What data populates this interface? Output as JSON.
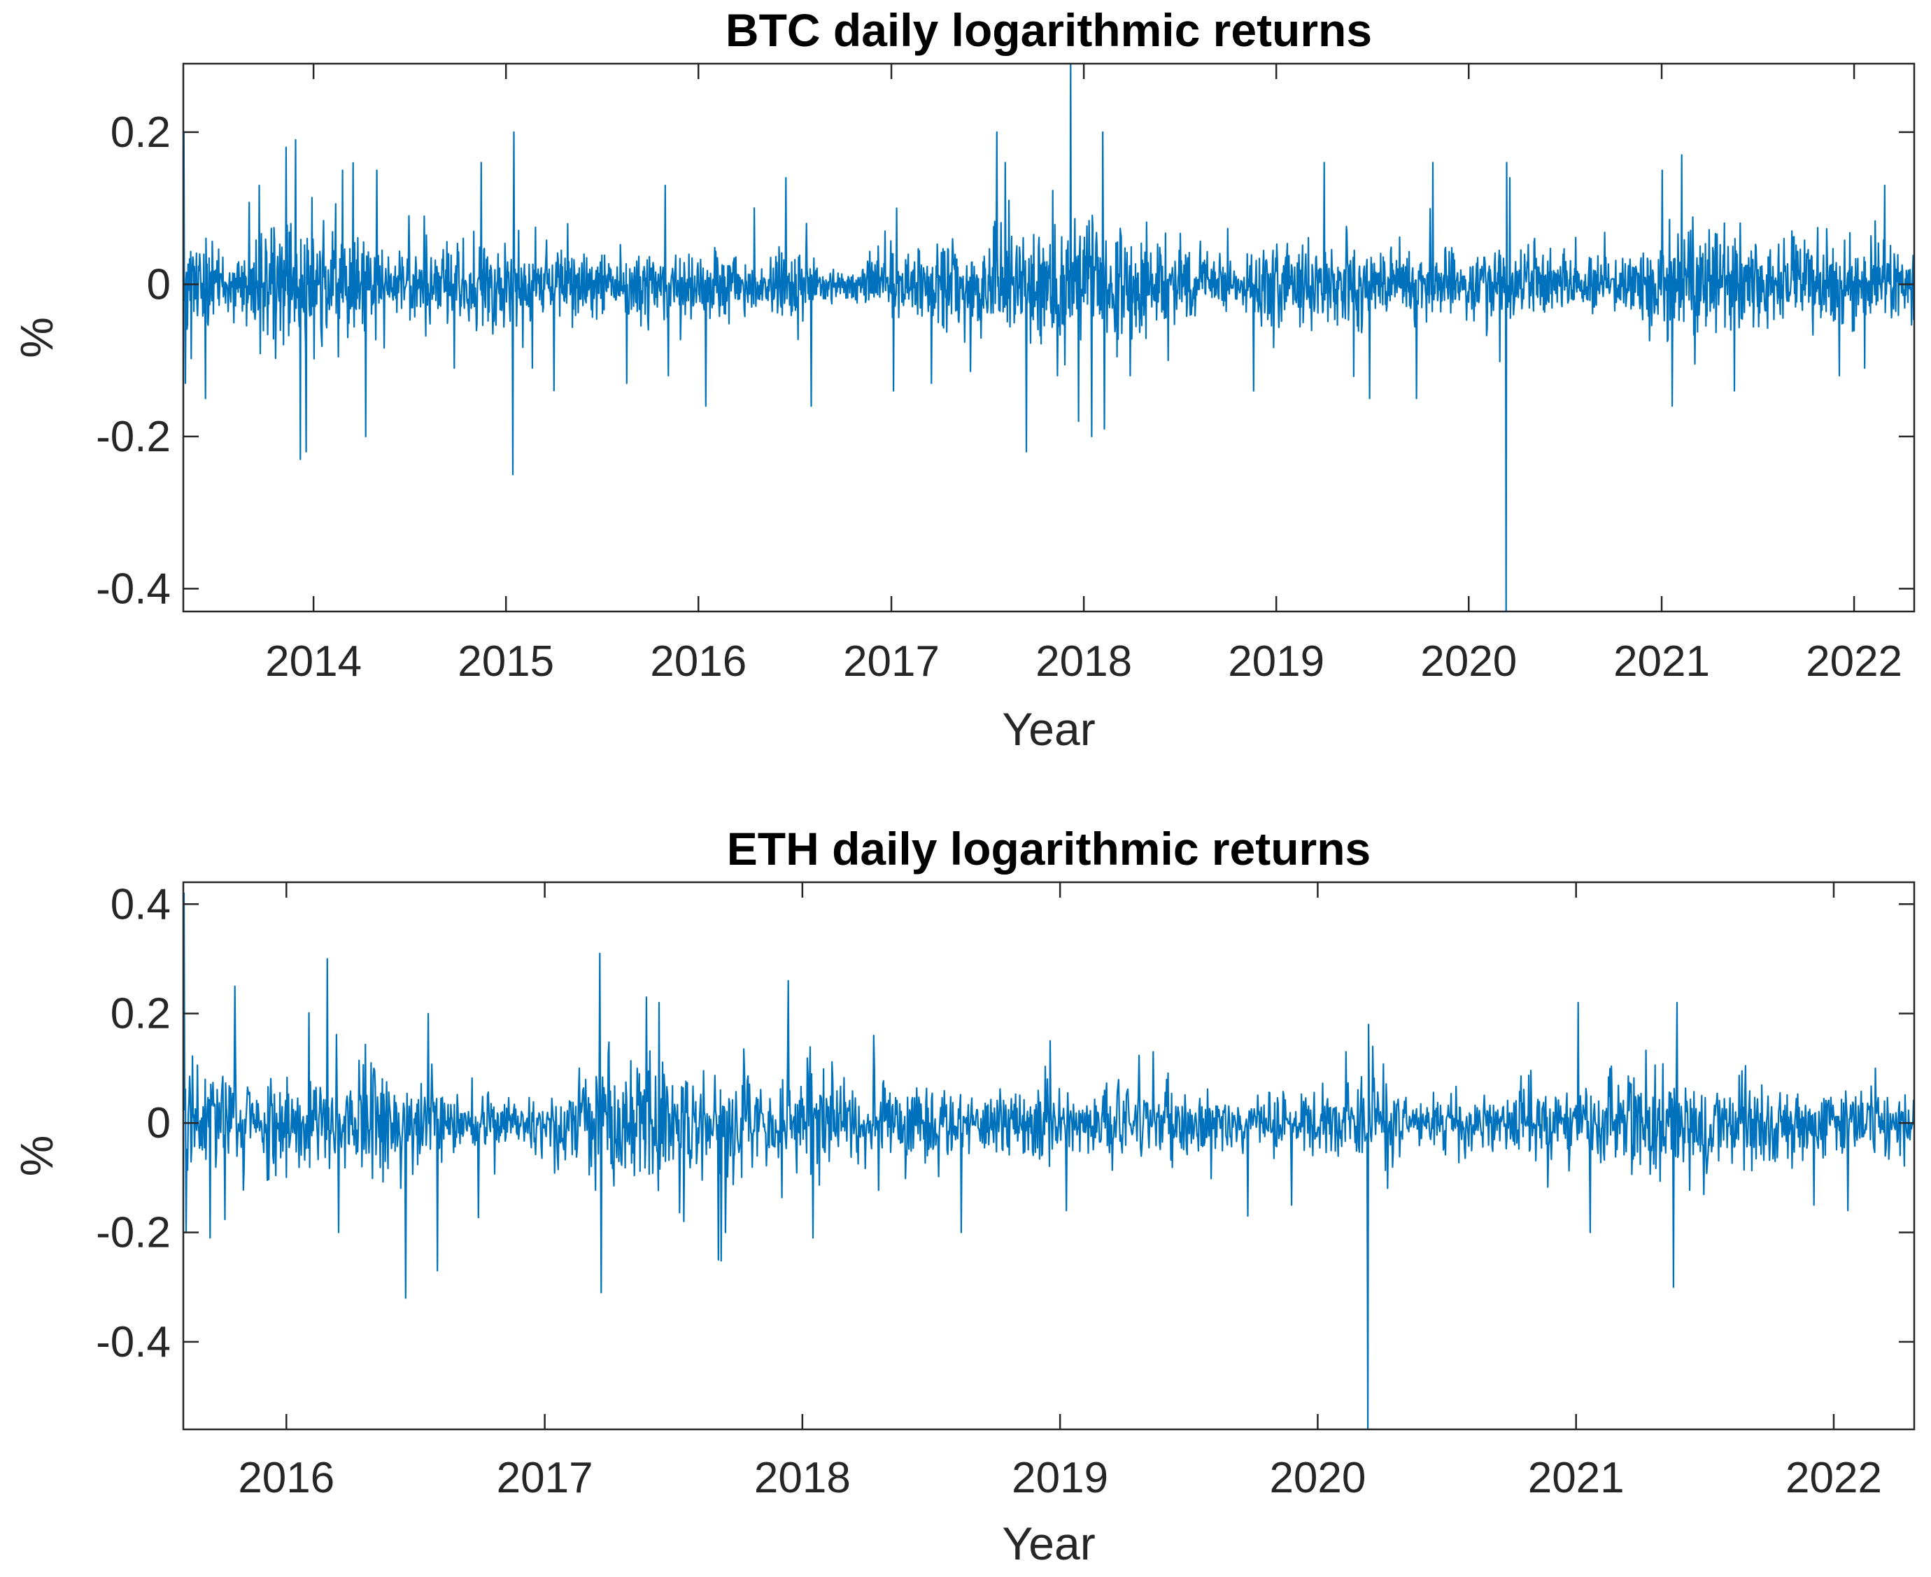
{
  "chart_data": [
    {
      "type": "line",
      "title": "BTC daily logarithmic returns",
      "xlabel": "Year",
      "ylabel": "%",
      "xlim": [
        "2013-04-29",
        "2022-04-25"
      ],
      "ylim": [
        -0.43,
        0.29
      ],
      "xticks": [
        "2014",
        "2015",
        "2016",
        "2017",
        "2018",
        "2019",
        "2020",
        "2021",
        "2022"
      ],
      "xtick_dates": [
        "2014-01-01",
        "2015-01-01",
        "2016-01-01",
        "2017-01-01",
        "2018-01-01",
        "2019-01-01",
        "2020-01-01",
        "2021-01-01",
        "2022-01-01"
      ],
      "yticks": [
        0.2,
        0,
        -0.2,
        -0.4
      ],
      "ytick_labels": [
        "0.2",
        "0",
        "-0.2",
        "-0.4"
      ],
      "grid": false,
      "color": "#0072BD",
      "series": [
        {
          "volatility_profile": [
            [
              "2013-04-29",
              0.055
            ],
            [
              "2013-08-01",
              0.03
            ],
            [
              "2013-11-15",
              0.07
            ],
            [
              "2014-01-15",
              0.065
            ],
            [
              "2014-06-01",
              0.035
            ],
            [
              "2014-12-01",
              0.04
            ],
            [
              "2015-03-01",
              0.045
            ],
            [
              "2015-08-01",
              0.03
            ],
            [
              "2016-01-01",
              0.03
            ],
            [
              "2016-06-15",
              0.035
            ],
            [
              "2016-10-01",
              0.015
            ],
            [
              "2017-01-01",
              0.035
            ],
            [
              "2017-06-01",
              0.055
            ],
            [
              "2017-12-20",
              0.07
            ],
            [
              "2018-03-01",
              0.06
            ],
            [
              "2018-08-01",
              0.035
            ],
            [
              "2018-10-15",
              0.015
            ],
            [
              "2018-12-01",
              0.045
            ],
            [
              "2019-07-01",
              0.045
            ],
            [
              "2019-12-01",
              0.03
            ],
            [
              "2020-05-01",
              0.035
            ],
            [
              "2020-10-01",
              0.02
            ],
            [
              "2021-01-15",
              0.055
            ],
            [
              "2021-06-01",
              0.055
            ],
            [
              "2021-12-01",
              0.04
            ],
            [
              "2022-04-25",
              0.035
            ]
          ],
          "spikes": [
            [
              "2013-04-30",
              0.2
            ],
            [
              "2013-05-03",
              -0.13
            ],
            [
              "2013-06-10",
              -0.15
            ],
            [
              "2013-09-20",
              0.13
            ],
            [
              "2013-11-10",
              0.18
            ],
            [
              "2013-11-28",
              0.19
            ],
            [
              "2013-12-07",
              -0.23
            ],
            [
              "2013-12-18",
              -0.22
            ],
            [
              "2014-02-25",
              0.15
            ],
            [
              "2014-04-10",
              -0.2
            ],
            [
              "2014-05-01",
              0.15
            ],
            [
              "2014-07-01",
              0.09
            ],
            [
              "2014-09-25",
              -0.11
            ],
            [
              "2014-11-15",
              0.16
            ],
            [
              "2015-01-14",
              -0.25
            ],
            [
              "2015-01-16",
              0.2
            ],
            [
              "2015-02-20",
              -0.11
            ],
            [
              "2015-08-18",
              -0.13
            ],
            [
              "2015-10-30",
              0.13
            ],
            [
              "2015-11-05",
              -0.12
            ],
            [
              "2016-01-15",
              -0.16
            ],
            [
              "2016-06-15",
              0.14
            ],
            [
              "2016-08-02",
              -0.16
            ],
            [
              "2016-12-20",
              0.07
            ],
            [
              "2017-01-05",
              -0.14
            ],
            [
              "2017-01-11",
              0.1
            ],
            [
              "2017-03-18",
              -0.13
            ],
            [
              "2017-07-20",
              0.2
            ],
            [
              "2017-08-05",
              0.16
            ],
            [
              "2017-09-14",
              -0.22
            ],
            [
              "2017-11-12",
              -0.12
            ],
            [
              "2017-12-07",
              0.29
            ],
            [
              "2017-12-22",
              -0.18
            ],
            [
              "2018-01-16",
              -0.2
            ],
            [
              "2018-02-06",
              0.2
            ],
            [
              "2018-02-09",
              -0.19
            ],
            [
              "2018-03-30",
              -0.12
            ],
            [
              "2018-06-10",
              -0.1
            ],
            [
              "2018-11-19",
              -0.14
            ],
            [
              "2019-04-02",
              0.16
            ],
            [
              "2019-06-27",
              -0.15
            ],
            [
              "2019-09-24",
              -0.15
            ],
            [
              "2019-10-25",
              0.16
            ],
            [
              "2020-03-12",
              -0.43
            ],
            [
              "2020-03-13",
              0.16
            ],
            [
              "2020-03-19",
              0.14
            ],
            [
              "2021-01-02",
              0.15
            ],
            [
              "2021-01-21",
              -0.16
            ],
            [
              "2021-02-08",
              0.17
            ],
            [
              "2021-05-19",
              -0.14
            ],
            [
              "2021-12-04",
              -0.12
            ],
            [
              "2022-02-28",
              0.13
            ],
            [
              "2022-01-21",
              -0.11
            ]
          ]
        }
      ]
    },
    {
      "type": "line",
      "title": "ETH daily logarithmic returns",
      "xlabel": "Year",
      "ylabel": "%",
      "xlim": [
        "2015-08-08",
        "2022-04-25"
      ],
      "ylim": [
        -0.56,
        0.44
      ],
      "xticks": [
        "2016",
        "2017",
        "2018",
        "2019",
        "2020",
        "2021",
        "2022"
      ],
      "xtick_dates": [
        "2016-01-01",
        "2017-01-01",
        "2018-01-01",
        "2019-01-01",
        "2020-01-01",
        "2021-01-01",
        "2022-01-01"
      ],
      "yticks": [
        0.4,
        0.2,
        0,
        -0.2,
        -0.4
      ],
      "ytick_labels": [
        "0.4",
        "0.2",
        "0",
        "-0.2",
        "-0.4"
      ],
      "grid": false,
      "color": "#0072BD",
      "series": [
        {
          "volatility_profile": [
            [
              "2015-08-08",
              0.085
            ],
            [
              "2015-11-01",
              0.065
            ],
            [
              "2016-03-01",
              0.085
            ],
            [
              "2016-06-15",
              0.075
            ],
            [
              "2016-09-01",
              0.04
            ],
            [
              "2016-12-01",
              0.035
            ],
            [
              "2017-03-15",
              0.09
            ],
            [
              "2017-08-01",
              0.075
            ],
            [
              "2018-01-15",
              0.08
            ],
            [
              "2018-06-01",
              0.06
            ],
            [
              "2018-09-01",
              0.05
            ],
            [
              "2019-01-01",
              0.05
            ],
            [
              "2019-07-01",
              0.045
            ],
            [
              "2019-12-01",
              0.035
            ],
            [
              "2020-03-15",
              0.06
            ],
            [
              "2020-06-01",
              0.035
            ],
            [
              "2020-11-01",
              0.05
            ],
            [
              "2021-05-20",
              0.075
            ],
            [
              "2021-09-01",
              0.055
            ],
            [
              "2022-04-25",
              0.045
            ]
          ],
          "spikes": [
            [
              "2015-08-09",
              0.42
            ],
            [
              "2015-08-12",
              -0.2
            ],
            [
              "2015-09-15",
              -0.21
            ],
            [
              "2015-10-20",
              0.25
            ],
            [
              "2016-02-28",
              0.3
            ],
            [
              "2016-03-15",
              -0.2
            ],
            [
              "2016-06-18",
              -0.32
            ],
            [
              "2016-08-02",
              -0.27
            ],
            [
              "2016-07-20",
              0.2
            ],
            [
              "2017-03-20",
              0.31
            ],
            [
              "2017-03-22",
              -0.31
            ],
            [
              "2017-05-25",
              0.23
            ],
            [
              "2017-06-12",
              0.22
            ],
            [
              "2017-07-17",
              -0.18
            ],
            [
              "2017-09-04",
              -0.25
            ],
            [
              "2017-09-14",
              -0.2
            ],
            [
              "2017-12-12",
              0.26
            ],
            [
              "2018-01-16",
              -0.21
            ],
            [
              "2018-04-12",
              0.16
            ],
            [
              "2018-08-14",
              -0.2
            ],
            [
              "2018-12-18",
              0.15
            ],
            [
              "2019-01-10",
              -0.16
            ],
            [
              "2019-05-13",
              0.13
            ],
            [
              "2019-09-24",
              -0.17
            ],
            [
              "2019-11-25",
              -0.15
            ],
            [
              "2020-02-10",
              0.13
            ],
            [
              "2020-03-12",
              -0.56
            ],
            [
              "2020-03-13",
              0.18
            ],
            [
              "2020-03-19",
              0.14
            ],
            [
              "2021-01-04",
              0.22
            ],
            [
              "2021-01-21",
              -0.2
            ],
            [
              "2021-05-19",
              -0.3
            ],
            [
              "2021-05-24",
              0.22
            ],
            [
              "2021-12-04",
              -0.15
            ],
            [
              "2022-01-21",
              -0.16
            ],
            [
              "2022-03-01",
              0.1
            ]
          ]
        }
      ]
    }
  ]
}
